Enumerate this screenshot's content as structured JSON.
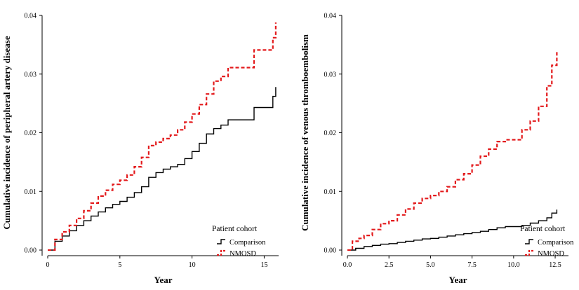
{
  "chart_data": [
    {
      "type": "line",
      "step": true,
      "xlabel": "Year",
      "ylabel": "Cumulative incidence of peripheral artery disease",
      "xlim": [
        0,
        16
      ],
      "ylim": [
        0,
        0.04
      ],
      "xticks": [
        0,
        5,
        10,
        15
      ],
      "xtick_labels": [
        "0",
        "5",
        "10",
        "15"
      ],
      "yticks": [
        0,
        0.01,
        0.02,
        0.03,
        0.04
      ],
      "ytick_labels": [
        "0.00",
        "0.01",
        "0.02",
        "0.03",
        "0.04"
      ],
      "grid": false,
      "legend": {
        "title": "Patient cohort",
        "placement": "bottom-right"
      },
      "series": [
        {
          "name": "Comparison",
          "color": "#000000",
          "dash": "solid",
          "x": [
            0,
            0.5,
            1,
            1.5,
            2,
            2.5,
            3,
            3.5,
            4,
            4.5,
            5,
            5.5,
            6,
            6.5,
            7,
            7.5,
            8,
            8.5,
            9,
            9.5,
            10,
            10.5,
            11,
            11.5,
            12,
            12.5,
            13,
            13.5,
            14,
            14.3,
            14.8,
            15.2,
            15.6,
            15.8
          ],
          "y": [
            0,
            0.0015,
            0.0024,
            0.0033,
            0.0042,
            0.005,
            0.0058,
            0.0065,
            0.0072,
            0.0078,
            0.0083,
            0.009,
            0.0098,
            0.0108,
            0.0124,
            0.0132,
            0.0138,
            0.0142,
            0.0146,
            0.0156,
            0.0168,
            0.0182,
            0.0198,
            0.0207,
            0.0213,
            0.0222,
            0.0222,
            0.0222,
            0.0222,
            0.0243,
            0.0243,
            0.0243,
            0.0262,
            0.0278
          ]
        },
        {
          "name": "NMOSD",
          "color": "#e31a1c",
          "dash": "dashed",
          "x": [
            0,
            0.5,
            1,
            1.5,
            2,
            2.5,
            3,
            3.5,
            4,
            4.5,
            5,
            5.5,
            6,
            6.5,
            7,
            7.5,
            8,
            8.5,
            9,
            9.5,
            10,
            10.5,
            11,
            11.5,
            12,
            12.5,
            13,
            13.5,
            14,
            14.3,
            14.8,
            15.2,
            15.6,
            15.8
          ],
          "y": [
            0,
            0.0018,
            0.0031,
            0.0042,
            0.0054,
            0.0067,
            0.008,
            0.0092,
            0.0102,
            0.0112,
            0.0119,
            0.0128,
            0.0142,
            0.0158,
            0.0178,
            0.0184,
            0.019,
            0.0196,
            0.0205,
            0.0218,
            0.0232,
            0.0248,
            0.0266,
            0.0288,
            0.0296,
            0.0311,
            0.0311,
            0.0311,
            0.0311,
            0.0341,
            0.0341,
            0.0341,
            0.0362,
            0.0388
          ]
        }
      ]
    },
    {
      "type": "line",
      "step": true,
      "xlabel": "Year",
      "ylabel": "Cumulative incidence of venous thromboembolism",
      "xlim": [
        0,
        13.3
      ],
      "ylim": [
        0,
        0.04
      ],
      "xticks": [
        0,
        2.5,
        5,
        7.5,
        10,
        12.5
      ],
      "xtick_labels": [
        "0.0",
        "2.5",
        "5.0",
        "7.5",
        "10.0",
        "12.5"
      ],
      "yticks": [
        0,
        0.01,
        0.02,
        0.03,
        0.04
      ],
      "ytick_labels": [
        "0.000",
        "0.010",
        "0.020",
        "0.030",
        "0.040"
      ],
      "ytick_labels_shown": [
        "0.00",
        "0.01",
        "0.02",
        "0.03",
        "0.04"
      ],
      "grid": false,
      "legend": {
        "title": "Patient cohort",
        "placement": "bottom-right"
      },
      "series": [
        {
          "name": "Comparison",
          "color": "#000000",
          "dash": "solid",
          "x": [
            0,
            0.5,
            1,
            1.5,
            2,
            2.5,
            3,
            3.5,
            4,
            4.5,
            5,
            5.5,
            6,
            6.5,
            7,
            7.5,
            8,
            8.5,
            9,
            9.5,
            10,
            10.5,
            11,
            11.5,
            12,
            12.3,
            12.6
          ],
          "y": [
            0,
            0.0003,
            0.0006,
            0.0008,
            0.001,
            0.0011,
            0.0013,
            0.0015,
            0.0017,
            0.0019,
            0.002,
            0.0022,
            0.0024,
            0.0026,
            0.0028,
            0.003,
            0.0032,
            0.0035,
            0.0038,
            0.004,
            0.004,
            0.0042,
            0.0046,
            0.005,
            0.0055,
            0.0063,
            0.0069
          ]
        },
        {
          "name": "NMOSD",
          "color": "#e31a1c",
          "dash": "dashed",
          "x": [
            0,
            0.3,
            0.7,
            1,
            1.5,
            2,
            2.5,
            3,
            3.5,
            4,
            4.5,
            5,
            5.5,
            6,
            6.5,
            7,
            7.5,
            8,
            8.5,
            9,
            9.5,
            10,
            10.5,
            11,
            11.5,
            12,
            12.3,
            12.6
          ],
          "y": [
            0,
            0.0015,
            0.002,
            0.0025,
            0.0035,
            0.0045,
            0.005,
            0.006,
            0.007,
            0.008,
            0.0088,
            0.0093,
            0.01,
            0.0108,
            0.012,
            0.013,
            0.0145,
            0.016,
            0.0172,
            0.0185,
            0.0188,
            0.0188,
            0.0205,
            0.022,
            0.0245,
            0.028,
            0.0315,
            0.034
          ]
        }
      ]
    }
  ],
  "legend_labels": {
    "title": "Patient cohort",
    "comparison": "Comparison",
    "nmosd": "NMOSD"
  }
}
